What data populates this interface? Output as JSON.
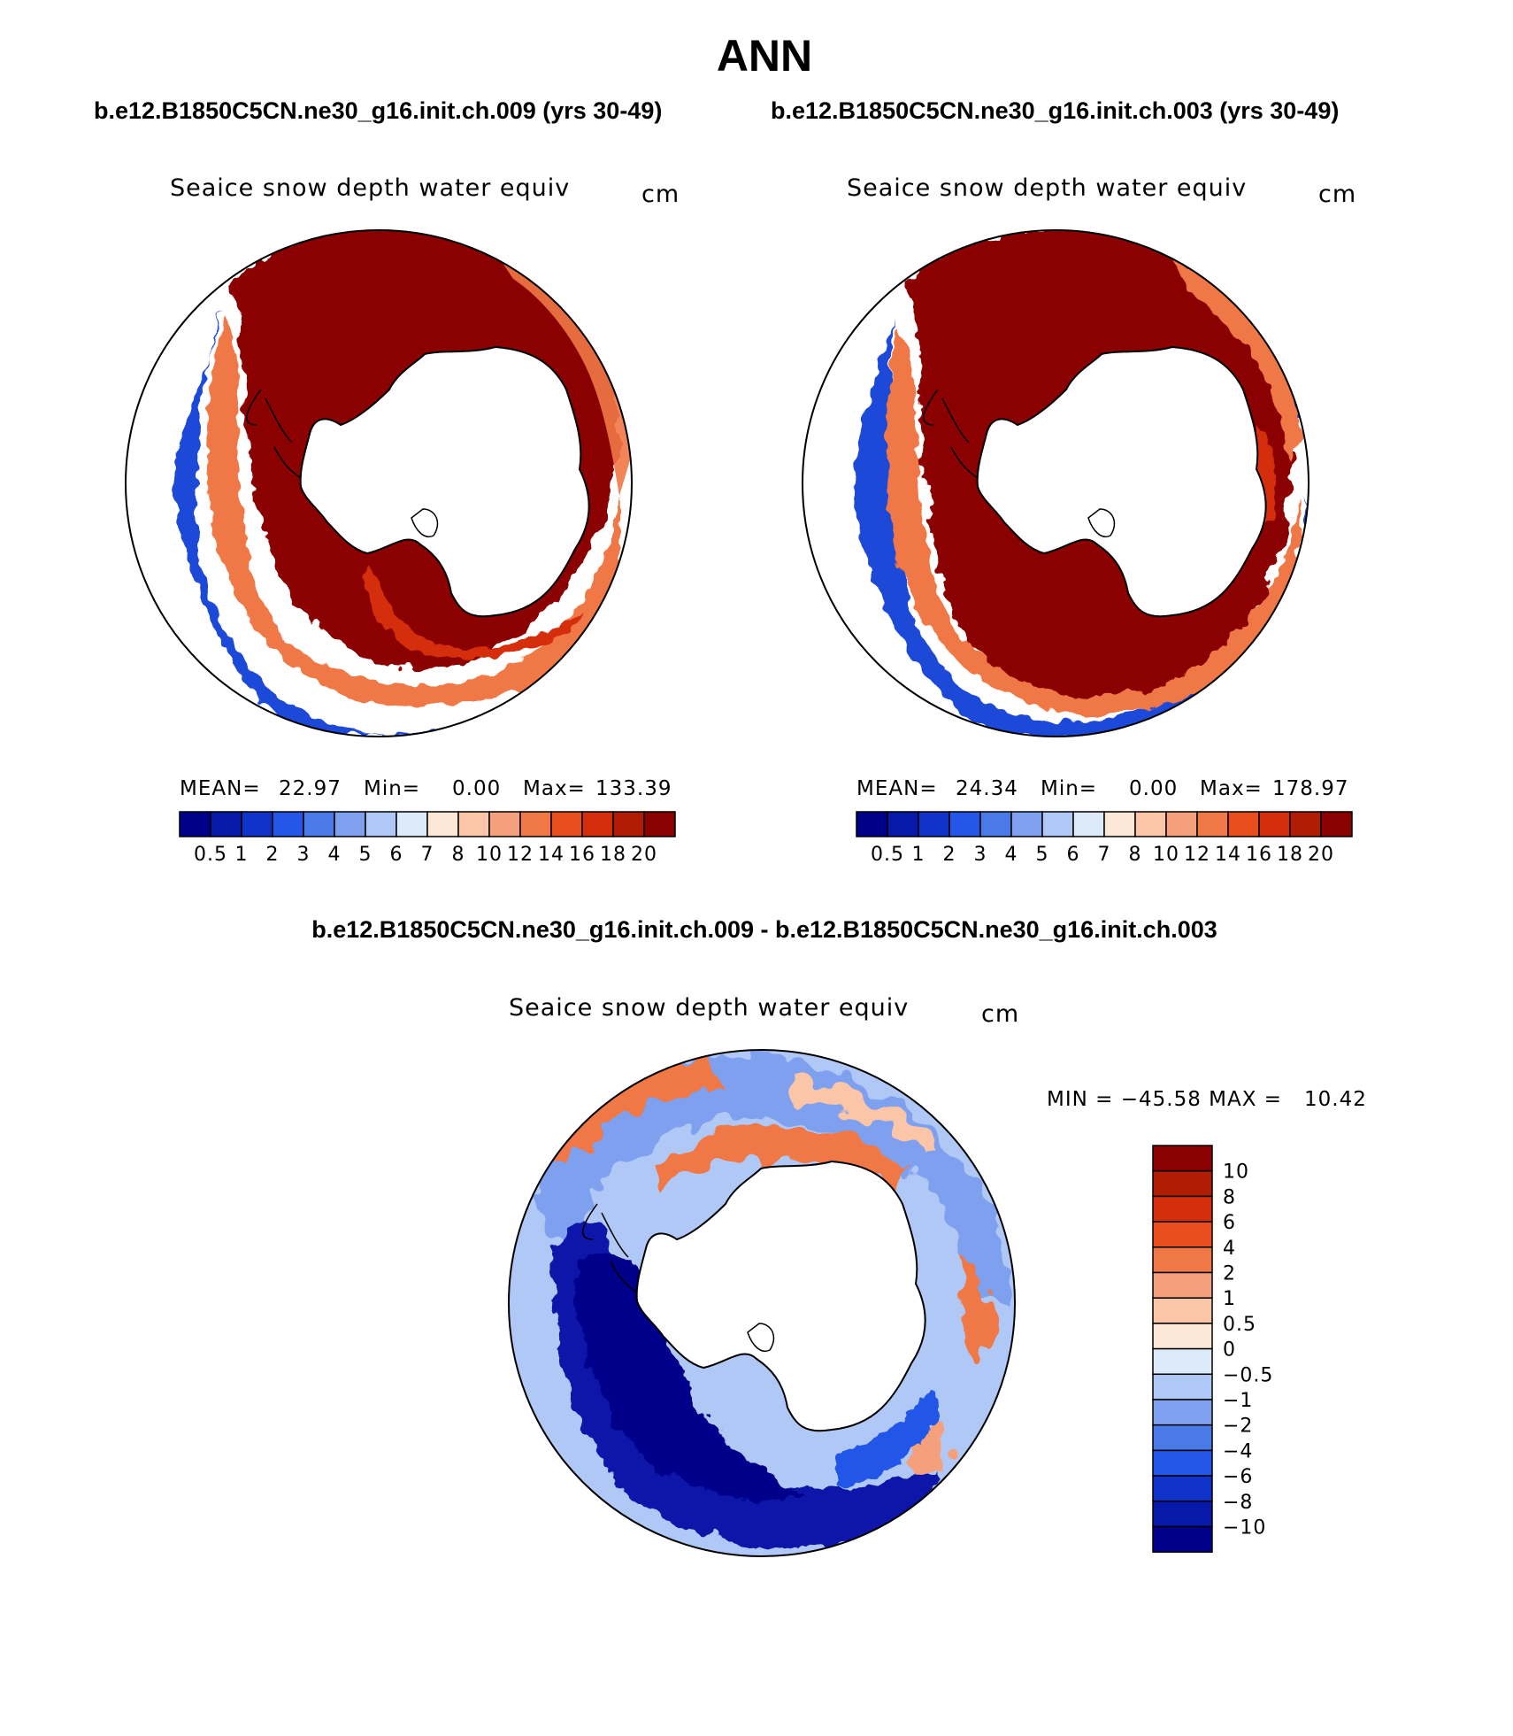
{
  "figure": {
    "title": "ANN",
    "case_a_header": "b.e12.B1850C5CN.ne30_g16.init.ch.009 (yrs 30-49)",
    "case_b_header": "b.e12.B1850C5CN.ne30_g16.init.ch.003 (yrs 30-49)",
    "diff_header": "b.e12.B1850C5CN.ne30_g16.init.ch.009 - b.e12.B1850C5CN.ne30_g16.init.ch.003"
  },
  "panels": [
    {
      "variable": "Seaice snow depth water equiv",
      "units": "cm",
      "mean_label": "MEAN=",
      "mean_value": "22.97",
      "min_label": "Min=",
      "min_value": "0.00",
      "max_label": "Max=",
      "max_value": "133.39"
    },
    {
      "variable": "Seaice snow depth water equiv",
      "units": "cm",
      "mean_label": "MEAN=",
      "mean_value": "24.34",
      "min_label": "Min=",
      "min_value": "0.00",
      "max_label": "Max=",
      "max_value": "178.97"
    },
    {
      "variable": "Seaice snow depth water equiv",
      "units": "cm",
      "minmax_text": "MIN = −45.58 MAX =   10.42"
    }
  ],
  "colorbars": {
    "abs_colors": [
      "#00008b",
      "#0719a8",
      "#0f33c8",
      "#2457e8",
      "#4a7ae8",
      "#7ea0ee",
      "#b0c8f5",
      "#dceaf9",
      "#fde8d8",
      "#fbc5a8",
      "#f5a07c",
      "#f07846",
      "#ea4e1e",
      "#d42e0c",
      "#b11c04",
      "#8b0000"
    ],
    "abs_ticks": [
      "0.5",
      "1",
      "2",
      "3",
      "4",
      "5",
      "6",
      "7",
      "8",
      "10",
      "12",
      "14",
      "16",
      "18",
      "20"
    ],
    "diff_colors": [
      "#8b0000",
      "#b11c04",
      "#d42e0c",
      "#ea4e1e",
      "#f07846",
      "#f5a07c",
      "#fbc5a8",
      "#fde8d8",
      "#dceaf9",
      "#b0c8f5",
      "#7ea0ee",
      "#4a7ae8",
      "#2457e8",
      "#0f33c8",
      "#0719a8",
      "#00008b"
    ],
    "diff_ticks": [
      "10",
      "8",
      "6",
      "4",
      "2",
      "1",
      "0.5",
      "0",
      "−0.5",
      "−1",
      "−2",
      "−4",
      "−6",
      "−8",
      "−10"
    ]
  }
}
